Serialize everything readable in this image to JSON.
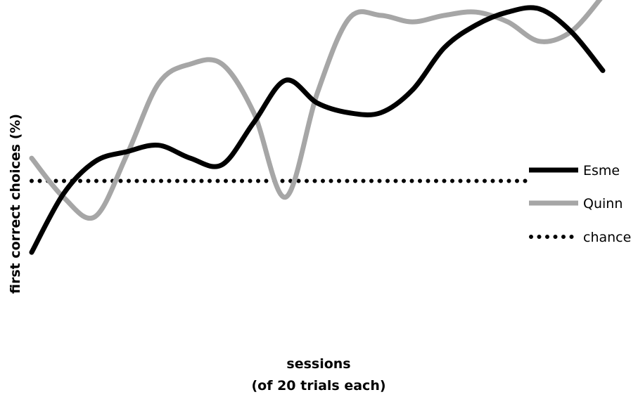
{
  "chart_data": {
    "type": "line",
    "title": "",
    "ylabel": "first correct choices (%)",
    "xlabel_lines": [
      "sessions",
      "(of 20 trials each)"
    ],
    "x": [
      1,
      2,
      3,
      4,
      5,
      6,
      7,
      8,
      9,
      10,
      11,
      12,
      13,
      14,
      15,
      16,
      17,
      18,
      19
    ],
    "xlim": [
      1,
      19
    ],
    "ylim": [
      0,
      100
    ],
    "grid": false,
    "legend_position": "right",
    "series": [
      {
        "name": "Esme",
        "color": "#000000",
        "style": "solid",
        "values": [
          24,
          42,
          52,
          55,
          57,
          53,
          51,
          64,
          77,
          70,
          67,
          67,
          74,
          87,
          94,
          98,
          99,
          92,
          80
        ]
      },
      {
        "name": "Quinn",
        "color": "#a6a6a6",
        "style": "solid",
        "values": [
          53,
          41,
          35,
          54,
          76,
          82,
          82,
          67,
          41,
          73,
          96,
          97,
          95,
          97,
          98,
          95,
          89,
          92,
          103
        ]
      },
      {
        "name": "chance",
        "color": "#000000",
        "style": "dotted",
        "values": [
          46,
          46,
          46,
          46,
          46,
          46,
          46,
          46,
          46,
          46,
          46,
          46,
          46,
          46,
          46,
          46,
          46,
          46,
          46
        ]
      }
    ]
  }
}
